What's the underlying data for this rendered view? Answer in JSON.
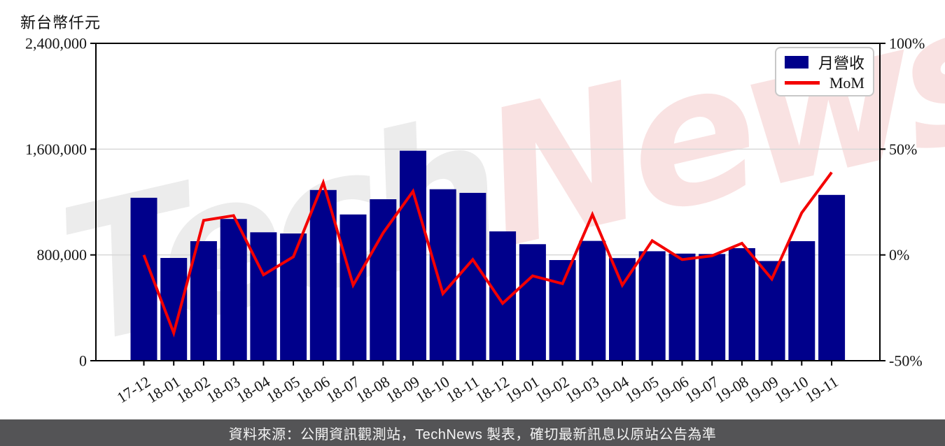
{
  "page": {
    "unit_label": "新台幣仟元"
  },
  "watermark": {
    "part1": "Tech",
    "part1_color": "#ececec",
    "part2": "News",
    "part2_color": "#f9e2e2"
  },
  "footer": {
    "text": "資料來源：公開資訊觀測站，TechNews 製表，確切最新訊息以原站公告為準"
  },
  "chart_data": {
    "type": "bar",
    "title": "新台幣仟元",
    "categories": [
      "17-12",
      "18-01",
      "18-02",
      "18-03",
      "18-04",
      "18-05",
      "18-06",
      "18-07",
      "18-08",
      "18-09",
      "18-10",
      "18-11",
      "18-12",
      "19-01",
      "19-02",
      "19-03",
      "19-04",
      "19-05",
      "19-06",
      "19-07",
      "19-08",
      "19-09",
      "19-10",
      "19-11"
    ],
    "series": [
      {
        "name": "月營收",
        "type": "bar",
        "axis": "left",
        "color": "#00008b",
        "values": [
          1232000,
          777000,
          904000,
          1072000,
          971000,
          962000,
          1291000,
          1106000,
          1221000,
          1588000,
          1297000,
          1269000,
          978000,
          881000,
          761000,
          906000,
          776000,
          828000,
          810000,
          807000,
          851000,
          754000,
          904000,
          1254000
        ]
      },
      {
        "name": "MoM",
        "type": "line",
        "axis": "right",
        "color": "#f40000",
        "unit": "%",
        "values": [
          0.0,
          -36.9,
          16.3,
          18.6,
          -9.4,
          -0.9,
          34.2,
          -14.3,
          10.4,
          30.1,
          -18.3,
          -2.2,
          -22.9,
          -9.9,
          -13.6,
          19.1,
          -14.3,
          6.7,
          -2.2,
          -0.4,
          5.5,
          -11.4,
          19.9,
          39.0
        ]
      }
    ],
    "left_axis": {
      "range": [
        0,
        2400000
      ],
      "ticks": [
        {
          "v": 0,
          "label": "0"
        },
        {
          "v": 800000,
          "label": "800,000"
        },
        {
          "v": 1600000,
          "label": "1,600,000"
        },
        {
          "v": 2400000,
          "label": "2,400,000"
        }
      ],
      "grid_values": [
        800000,
        1600000
      ]
    },
    "right_axis": {
      "range": [
        -50,
        100
      ],
      "ticks": [
        {
          "v": -50,
          "label": "-50%"
        },
        {
          "v": 0,
          "label": "0%"
        },
        {
          "v": 50,
          "label": "50%"
        },
        {
          "v": 100,
          "label": "100%"
        }
      ]
    },
    "grid": "horizontal",
    "legend_position": "top-right"
  }
}
